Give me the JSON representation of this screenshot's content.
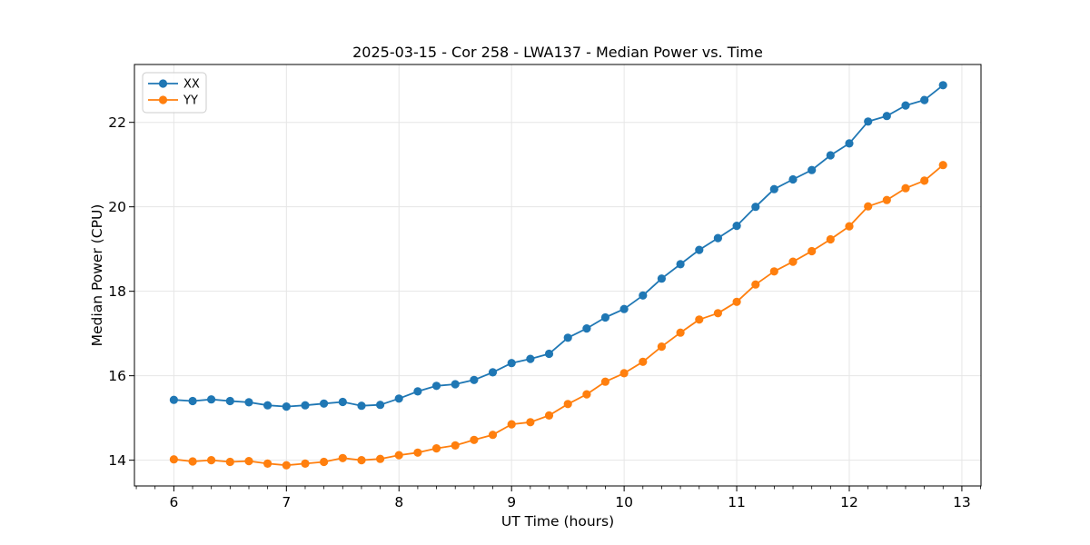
{
  "chart_data": {
    "type": "line",
    "title": "2025-03-15 - Cor 258 - LWA137 - Median Power vs. Time",
    "xlabel": "UT Time (hours)",
    "ylabel": "Median Power (CPU)",
    "xlim": [
      5.65,
      13.17
    ],
    "ylim": [
      13.39,
      23.37
    ],
    "xticks": [
      6,
      7,
      8,
      9,
      10,
      11,
      12,
      13
    ],
    "yticks": [
      14,
      16,
      18,
      20,
      22
    ],
    "x_minor_step": 0.166667,
    "grid": true,
    "grid_color": "#e6e6e6",
    "legend_position": "upper left",
    "x": [
      6.0,
      6.167,
      6.333,
      6.5,
      6.667,
      6.833,
      7.0,
      7.167,
      7.333,
      7.5,
      7.667,
      7.833,
      8.0,
      8.167,
      8.333,
      8.5,
      8.667,
      8.833,
      9.0,
      9.167,
      9.333,
      9.5,
      9.667,
      9.833,
      10.0,
      10.167,
      10.333,
      10.5,
      10.667,
      10.833,
      11.0,
      11.167,
      11.333,
      11.5,
      11.667,
      11.833,
      12.0,
      12.167,
      12.333,
      12.5,
      12.667,
      12.833
    ],
    "series": [
      {
        "name": "XX",
        "color": "#1f77b4",
        "values": [
          15.43,
          15.4,
          15.44,
          15.4,
          15.37,
          15.3,
          15.27,
          15.3,
          15.34,
          15.38,
          15.29,
          15.31,
          15.46,
          15.63,
          15.76,
          15.8,
          15.9,
          16.08,
          16.3,
          16.4,
          16.52,
          16.9,
          17.12,
          17.38,
          17.58,
          17.9,
          18.3,
          18.64,
          18.98,
          19.26,
          19.55,
          20.0,
          20.42,
          20.65,
          20.87,
          21.22,
          21.5,
          22.02,
          22.15,
          22.4,
          22.53,
          22.88
        ]
      },
      {
        "name": "YY",
        "color": "#ff7f0e",
        "values": [
          14.02,
          13.97,
          14.0,
          13.96,
          13.98,
          13.92,
          13.88,
          13.92,
          13.96,
          14.05,
          14.0,
          14.03,
          14.12,
          14.18,
          14.28,
          14.35,
          14.48,
          14.6,
          14.85,
          14.9,
          15.06,
          15.33,
          15.56,
          15.86,
          16.06,
          16.33,
          16.69,
          17.02,
          17.33,
          17.48,
          17.75,
          18.16,
          18.47,
          18.7,
          18.95,
          19.23,
          19.54,
          20.01,
          20.16,
          20.44,
          20.62,
          20.99
        ]
      }
    ]
  }
}
